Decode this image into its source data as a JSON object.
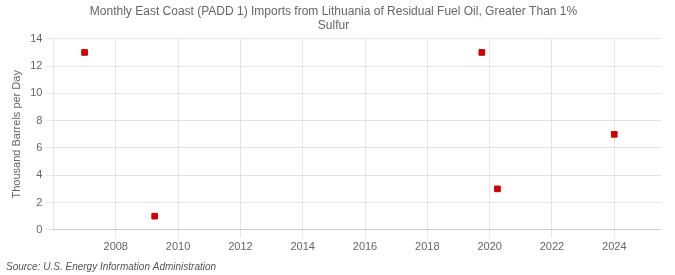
{
  "chart_data": {
    "type": "scatter",
    "title": "Monthly East Coast (PADD 1) Imports from Lithuania of Residual Fuel Oil, Greater Than 1%\nSulfur",
    "y_label": "Thousand Barrels per Day",
    "annotations": [
      "Source: U.S. Energy Information Administration"
    ],
    "x": [
      2007,
      2009.25,
      2019.75,
      2020.25,
      2024
    ],
    "values": [
      13,
      1,
      13,
      3,
      7
    ],
    "color": "#cc0000",
    "marker": "square",
    "xlim": [
      2006,
      2025.5
    ],
    "xticks": [
      2008,
      2010,
      2012,
      2014,
      2016,
      2018,
      2020,
      2022,
      2024
    ],
    "ylim": [
      0,
      14
    ],
    "yticks": [
      0,
      2,
      4,
      6,
      8,
      10,
      12,
      14
    ],
    "grid": true,
    "legend": false
  }
}
